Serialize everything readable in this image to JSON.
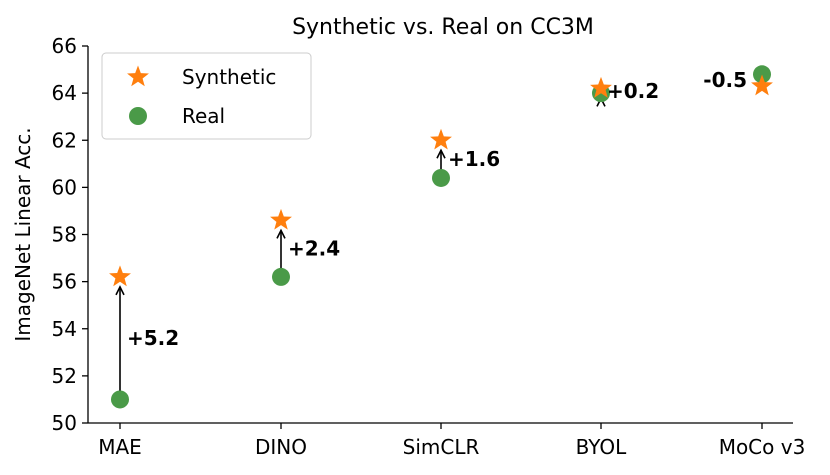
{
  "chart_data": {
    "type": "scatter",
    "title": "Synthetic vs. Real on CC3M",
    "xlabel": "",
    "ylabel": "ImageNet Linear Acc.",
    "ylim": [
      50,
      66
    ],
    "yticks": [
      50,
      52,
      54,
      56,
      58,
      60,
      62,
      64,
      66
    ],
    "categories": [
      "MAE",
      "DINO",
      "SimCLR",
      "BYOL",
      "MoCo v3"
    ],
    "series": [
      {
        "name": "Synthetic",
        "marker": "star",
        "color": "#ff7f0e",
        "values": [
          56.2,
          58.6,
          62.0,
          64.2,
          64.3
        ]
      },
      {
        "name": "Real",
        "marker": "circle",
        "color": "#4a9a48",
        "values": [
          51.0,
          56.2,
          60.4,
          64.0,
          64.8
        ]
      }
    ],
    "annotations": [
      "+5.2",
      "+2.4",
      "+1.6",
      "+0.2",
      "-0.5"
    ],
    "legend": {
      "position": "top-left",
      "entries": [
        "Synthetic",
        "Real"
      ]
    },
    "grid": false
  }
}
